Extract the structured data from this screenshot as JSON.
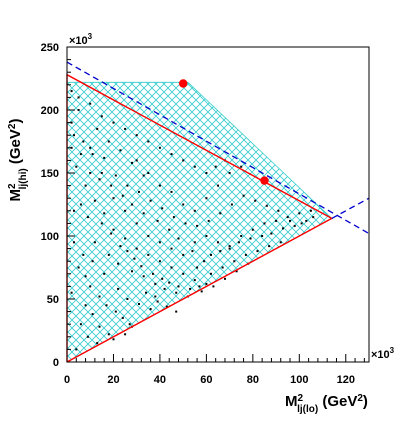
{
  "chart_data": {
    "type": "scatter",
    "xlabel": {
      "main": "M",
      "sup": "2",
      "sub": "lj(lo)",
      "unit": " (GeV",
      "unit_sup": "2",
      "unit_close": ")"
    },
    "ylabel": {
      "main": "M",
      "sup": "2",
      "sub": "lj(hi)",
      "unit": " (GeV",
      "unit_sup": "2",
      "unit_close": ")"
    },
    "x_multiplier": {
      "base": "×10",
      "exp": "3"
    },
    "y_multiplier": {
      "base": "×10",
      "exp": "3"
    },
    "xlim": [
      0,
      130
    ],
    "ylim": [
      0,
      250
    ],
    "xticks": [
      0,
      20,
      40,
      60,
      80,
      100,
      120
    ],
    "yticks": [
      0,
      50,
      100,
      150,
      200,
      250
    ],
    "x_minor_step": 4,
    "y_minor_step": 10,
    "grid": false,
    "colors": {
      "hatch": "#33cccc",
      "boundary": "#ff0000",
      "dashed": "#0000cc",
      "points": "#000000",
      "markers": "#ff0000"
    },
    "hatched_region": [
      [
        0,
        0
      ],
      [
        0,
        222
      ],
      [
        52,
        222
      ],
      [
        114,
        114
      ],
      [
        0,
        0
      ]
    ],
    "kinematic_boundary": [
      [
        0,
        0
      ],
      [
        0,
        228
      ],
      [
        114,
        114
      ],
      [
        0,
        0
      ]
    ],
    "dashed_lines": [
      {
        "points": [
          [
            0,
            238
          ],
          [
            130,
            102
          ]
        ]
      },
      {
        "points": [
          [
            114,
            114
          ],
          [
            130,
            130
          ]
        ]
      }
    ],
    "markers": [
      [
        50,
        221
      ],
      [
        85,
        144
      ]
    ],
    "scatter_points": [
      [
        5,
        200
      ],
      [
        3,
        180
      ],
      [
        10,
        170
      ],
      [
        15,
        150
      ],
      [
        8,
        140
      ],
      [
        20,
        130
      ],
      [
        25,
        120
      ],
      [
        30,
        110
      ],
      [
        12,
        95
      ],
      [
        18,
        85
      ],
      [
        35,
        100
      ],
      [
        40,
        95
      ],
      [
        45,
        90
      ],
      [
        50,
        85
      ],
      [
        55,
        95
      ],
      [
        60,
        100
      ],
      [
        65,
        95
      ],
      [
        70,
        90
      ],
      [
        75,
        100
      ],
      [
        80,
        105
      ],
      [
        85,
        110
      ],
      [
        90,
        112
      ],
      [
        95,
        115
      ],
      [
        100,
        118
      ],
      [
        105,
        120
      ],
      [
        22,
        78
      ],
      [
        28,
        72
      ],
      [
        33,
        68
      ],
      [
        38,
        62
      ],
      [
        42,
        58
      ],
      [
        47,
        55
      ],
      [
        52,
        52
      ],
      [
        57,
        60
      ],
      [
        62,
        70
      ],
      [
        67,
        75
      ],
      [
        72,
        80
      ],
      [
        77,
        85
      ],
      [
        82,
        88
      ],
      [
        87,
        92
      ],
      [
        92,
        95
      ],
      [
        10,
        60
      ],
      [
        14,
        52
      ],
      [
        17,
        45
      ],
      [
        21,
        40
      ],
      [
        24,
        35
      ],
      [
        27,
        30
      ],
      [
        6,
        30
      ],
      [
        9,
        20
      ],
      [
        13,
        15
      ],
      [
        4,
        10
      ],
      [
        30,
        160
      ],
      [
        35,
        150
      ],
      [
        40,
        140
      ],
      [
        45,
        135
      ],
      [
        50,
        125
      ],
      [
        55,
        120
      ],
      [
        60,
        130
      ],
      [
        65,
        140
      ],
      [
        70,
        150
      ],
      [
        75,
        155
      ],
      [
        15,
        110
      ],
      [
        20,
        105
      ],
      [
        25,
        98
      ],
      [
        30,
        90
      ],
      [
        35,
        85
      ],
      [
        40,
        80
      ],
      [
        45,
        75
      ],
      [
        50,
        70
      ],
      [
        55,
        65
      ],
      [
        60,
        62
      ],
      [
        3,
        120
      ],
      [
        6,
        125
      ],
      [
        9,
        115
      ],
      [
        12,
        128
      ],
      [
        16,
        118
      ],
      [
        19,
        102
      ],
      [
        23,
        92
      ],
      [
        26,
        88
      ],
      [
        29,
        82
      ],
      [
        32,
        76
      ],
      [
        37,
        70
      ],
      [
        41,
        66
      ],
      [
        44,
        63
      ],
      [
        48,
        60
      ],
      [
        53,
        58
      ],
      [
        58,
        56
      ],
      [
        63,
        60
      ],
      [
        68,
        66
      ],
      [
        73,
        72
      ],
      [
        78,
        78
      ],
      [
        2,
        190
      ],
      [
        7,
        175
      ],
      [
        11,
        165
      ],
      [
        4,
        155
      ],
      [
        16,
        162
      ],
      [
        21,
        148
      ],
      [
        26,
        140
      ],
      [
        31,
        135
      ],
      [
        36,
        128
      ],
      [
        41,
        122
      ],
      [
        46,
        115
      ],
      [
        51,
        110
      ],
      [
        56,
        108
      ],
      [
        61,
        112
      ],
      [
        66,
        118
      ],
      [
        71,
        125
      ],
      [
        76,
        132
      ],
      [
        81,
        128
      ],
      [
        86,
        124
      ],
      [
        91,
        120
      ],
      [
        96,
        112
      ],
      [
        101,
        110
      ],
      [
        8,
        45
      ],
      [
        11,
        38
      ],
      [
        14,
        28
      ],
      [
        18,
        22
      ],
      [
        5,
        75
      ],
      [
        8,
        68
      ],
      [
        2,
        55
      ],
      [
        16,
        70
      ],
      [
        22,
        58
      ],
      [
        26,
        50
      ],
      [
        31,
        46
      ],
      [
        36,
        42
      ],
      [
        39,
        48
      ],
      [
        43,
        44
      ],
      [
        47,
        40
      ],
      [
        20,
        18
      ],
      [
        25,
        22
      ],
      [
        28,
        28
      ],
      [
        7,
        85
      ],
      [
        11,
        80
      ],
      [
        3,
        95
      ],
      [
        34,
        55
      ],
      [
        38,
        52
      ],
      [
        62,
        85
      ],
      [
        66,
        88
      ],
      [
        70,
        92
      ],
      [
        74,
        95
      ],
      [
        79,
        98
      ],
      [
        84,
        100
      ],
      [
        88,
        102
      ],
      [
        93,
        106
      ],
      [
        98,
        108
      ],
      [
        103,
        112
      ],
      [
        106,
        115
      ],
      [
        56,
        75
      ],
      [
        59,
        80
      ],
      [
        54,
        88
      ],
      [
        48,
        98
      ],
      [
        44,
        105
      ],
      [
        39,
        112
      ],
      [
        33,
        118
      ],
      [
        28,
        125
      ],
      [
        24,
        132
      ],
      [
        19,
        140
      ],
      [
        14,
        145
      ],
      [
        10,
        150
      ],
      [
        6,
        165
      ],
      [
        2,
        170
      ],
      [
        60,
        150
      ],
      [
        64,
        155
      ],
      [
        68,
        160
      ],
      [
        55,
        155
      ],
      [
        50,
        160
      ],
      [
        45,
        165
      ],
      [
        40,
        170
      ],
      [
        35,
        175
      ],
      [
        30,
        180
      ],
      [
        25,
        185
      ],
      [
        20,
        190
      ],
      [
        15,
        195
      ],
      [
        10,
        205
      ],
      [
        5,
        210
      ],
      [
        2,
        215
      ],
      [
        13,
        185
      ],
      [
        18,
        175
      ],
      [
        23,
        168
      ],
      [
        28,
        158
      ],
      [
        33,
        148
      ]
    ]
  }
}
